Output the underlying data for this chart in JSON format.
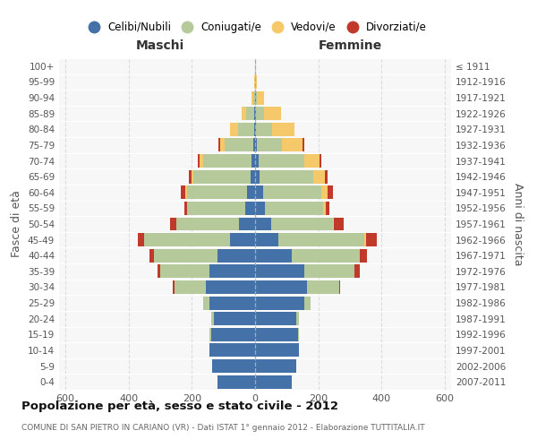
{
  "age_groups": [
    "0-4",
    "5-9",
    "10-14",
    "15-19",
    "20-24",
    "25-29",
    "30-34",
    "35-39",
    "40-44",
    "45-49",
    "50-54",
    "55-59",
    "60-64",
    "65-69",
    "70-74",
    "75-79",
    "80-84",
    "85-89",
    "90-94",
    "95-99",
    "100+"
  ],
  "birth_years": [
    "2007-2011",
    "2002-2006",
    "1997-2001",
    "1992-1996",
    "1987-1991",
    "1982-1986",
    "1977-1981",
    "1972-1976",
    "1967-1971",
    "1962-1966",
    "1957-1961",
    "1952-1956",
    "1947-1951",
    "1942-1946",
    "1937-1941",
    "1932-1936",
    "1927-1931",
    "1922-1926",
    "1917-1921",
    "1912-1916",
    "≤ 1911"
  ],
  "colors": {
    "celibi": "#4472a8",
    "coniugati": "#b5c99a",
    "vedovi": "#f5c96a",
    "divorziati": "#c0392b"
  },
  "maschi": {
    "celibi": [
      120,
      135,
      145,
      140,
      130,
      145,
      155,
      145,
      120,
      80,
      50,
      30,
      25,
      15,
      10,
      5,
      3,
      2,
      0,
      0,
      0
    ],
    "coniugati": [
      0,
      0,
      0,
      5,
      10,
      20,
      100,
      155,
      200,
      270,
      200,
      185,
      190,
      180,
      155,
      90,
      50,
      25,
      5,
      0,
      0
    ],
    "vedovi": [
      0,
      0,
      0,
      0,
      0,
      0,
      0,
      0,
      0,
      0,
      0,
      0,
      5,
      5,
      10,
      15,
      25,
      15,
      5,
      2,
      0
    ],
    "divorziati": [
      0,
      0,
      0,
      0,
      0,
      0,
      5,
      10,
      15,
      20,
      20,
      10,
      15,
      10,
      5,
      5,
      0,
      0,
      0,
      0,
      0
    ]
  },
  "femmine": {
    "celibi": [
      115,
      130,
      140,
      135,
      130,
      155,
      165,
      155,
      115,
      75,
      50,
      30,
      25,
      15,
      10,
      5,
      4,
      3,
      2,
      0,
      0
    ],
    "coniugati": [
      0,
      0,
      0,
      5,
      10,
      20,
      100,
      160,
      215,
      270,
      195,
      185,
      185,
      170,
      145,
      80,
      50,
      25,
      5,
      0,
      0
    ],
    "vedovi": [
      0,
      0,
      0,
      0,
      0,
      0,
      0,
      0,
      0,
      5,
      5,
      10,
      20,
      35,
      50,
      65,
      70,
      55,
      20,
      5,
      2
    ],
    "divorziati": [
      0,
      0,
      0,
      0,
      0,
      0,
      5,
      15,
      25,
      35,
      30,
      10,
      15,
      10,
      5,
      5,
      0,
      0,
      0,
      0,
      0
    ]
  },
  "xlim": 620,
  "xticks": [
    -600,
    -400,
    -200,
    0,
    200,
    400,
    600
  ],
  "xticklabels": [
    "600",
    "400",
    "200",
    "0",
    "200",
    "400",
    "600"
  ],
  "title": "Popolazione per età, sesso e stato civile - 2012",
  "subtitle": "COMUNE DI SAN PIETRO IN CARIANO (VR) - Dati ISTAT 1° gennaio 2012 - Elaborazione TUTTITALIA.IT",
  "ylabel_left": "Fasce di età",
  "ylabel_right": "Anni di nascita",
  "maschi_label": "Maschi",
  "femmine_label": "Femmine",
  "legend_labels": [
    "Celibi/Nubili",
    "Coniugati/e",
    "Vedovi/e",
    "Divorziati/e"
  ],
  "bg_color": "#ffffff",
  "plot_bg": "#f7f7f7",
  "bar_height": 0.85
}
